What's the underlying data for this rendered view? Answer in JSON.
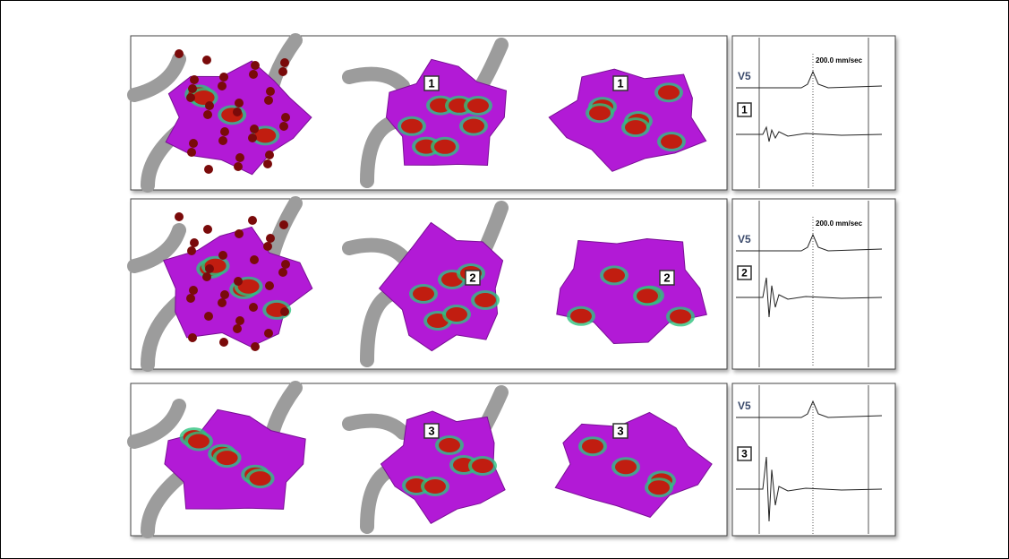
{
  "rows": [
    {
      "marker": "1",
      "speed": "200.0 mm/sec",
      "lead": "V5"
    },
    {
      "marker": "2",
      "speed": "200.0 mm/sec",
      "lead": "V5"
    },
    {
      "marker": "3",
      "lead": "V5"
    }
  ]
}
